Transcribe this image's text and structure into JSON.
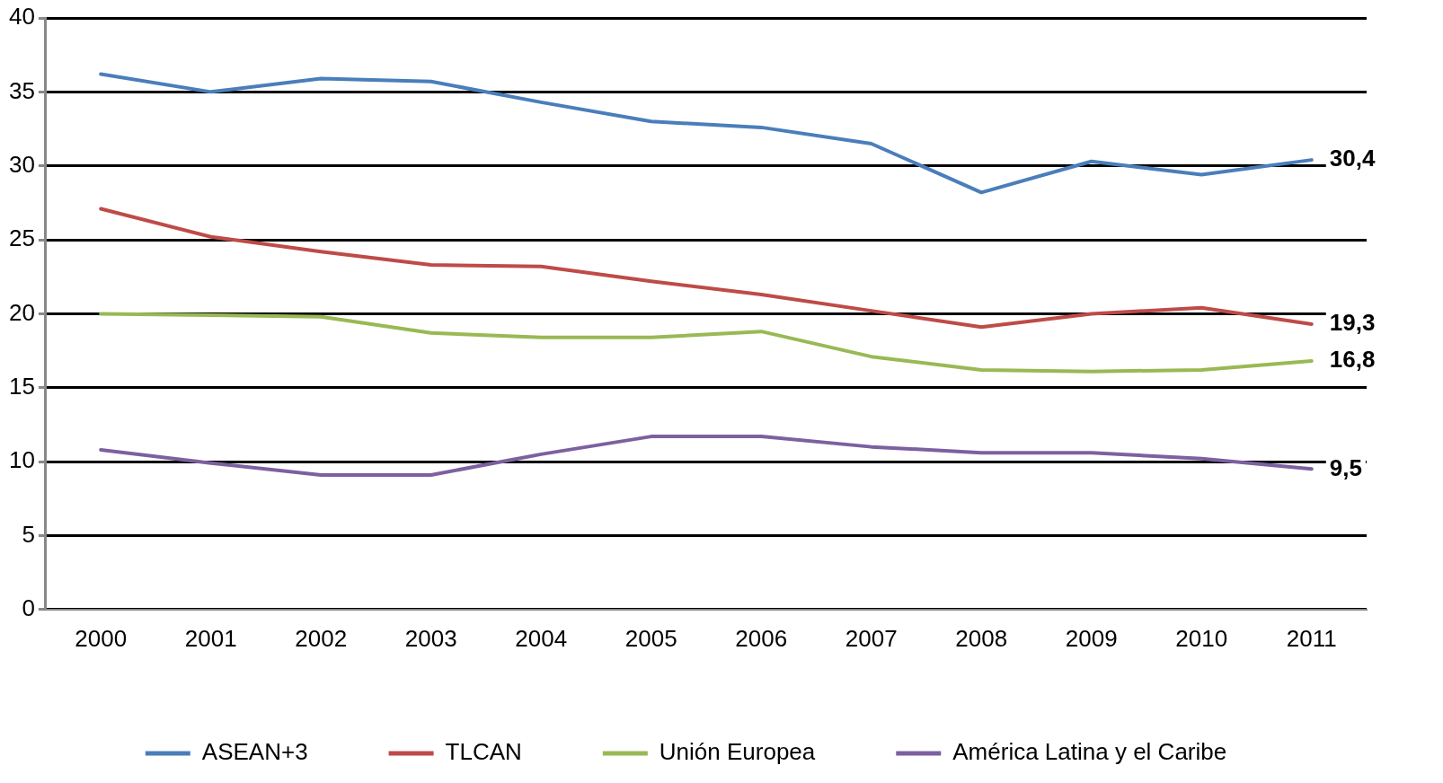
{
  "chart_data": {
    "type": "line",
    "categories": [
      "2000",
      "2001",
      "2002",
      "2003",
      "2004",
      "2005",
      "2006",
      "2007",
      "2008",
      "2009",
      "2010",
      "2011"
    ],
    "series": [
      {
        "name": "ASEAN+3",
        "color": "#4a7ebb",
        "values": [
          36.2,
          35.0,
          35.9,
          35.7,
          34.3,
          33.0,
          32.6,
          31.5,
          28.2,
          30.3,
          29.4,
          30.4
        ],
        "value_labels": [
          null,
          null,
          null,
          null,
          null,
          null,
          null,
          null,
          null,
          null,
          null,
          "30,4"
        ]
      },
      {
        "name": "TLCAN",
        "color": "#be4b48",
        "values": [
          27.1,
          25.2,
          24.2,
          23.3,
          23.2,
          22.2,
          21.3,
          20.2,
          19.1,
          20.0,
          20.4,
          19.3
        ],
        "value_labels": [
          null,
          null,
          null,
          null,
          null,
          null,
          null,
          null,
          null,
          null,
          null,
          "19,3"
        ]
      },
      {
        "name": "Unión Europea",
        "color": "#98b954",
        "values": [
          20.0,
          19.9,
          19.8,
          18.7,
          18.4,
          18.4,
          18.8,
          17.1,
          16.2,
          16.1,
          16.2,
          16.8
        ],
        "value_labels": [
          null,
          null,
          null,
          null,
          null,
          null,
          null,
          null,
          null,
          null,
          null,
          "16,8"
        ]
      },
      {
        "name": "América Latina y el Caribe",
        "color": "#7d60a0",
        "values": [
          10.8,
          9.9,
          9.1,
          9.1,
          10.5,
          11.7,
          11.7,
          11.0,
          10.6,
          10.6,
          10.2,
          9.5
        ],
        "value_labels": [
          null,
          null,
          null,
          null,
          null,
          null,
          null,
          null,
          null,
          null,
          null,
          "9,5"
        ]
      }
    ],
    "ylim": [
      0,
      40
    ],
    "yticks": [
      0,
      5,
      10,
      15,
      20,
      25,
      30,
      35,
      40
    ],
    "grid": "y",
    "legend": "bottom",
    "marker": "none",
    "line_style": "solid"
  }
}
